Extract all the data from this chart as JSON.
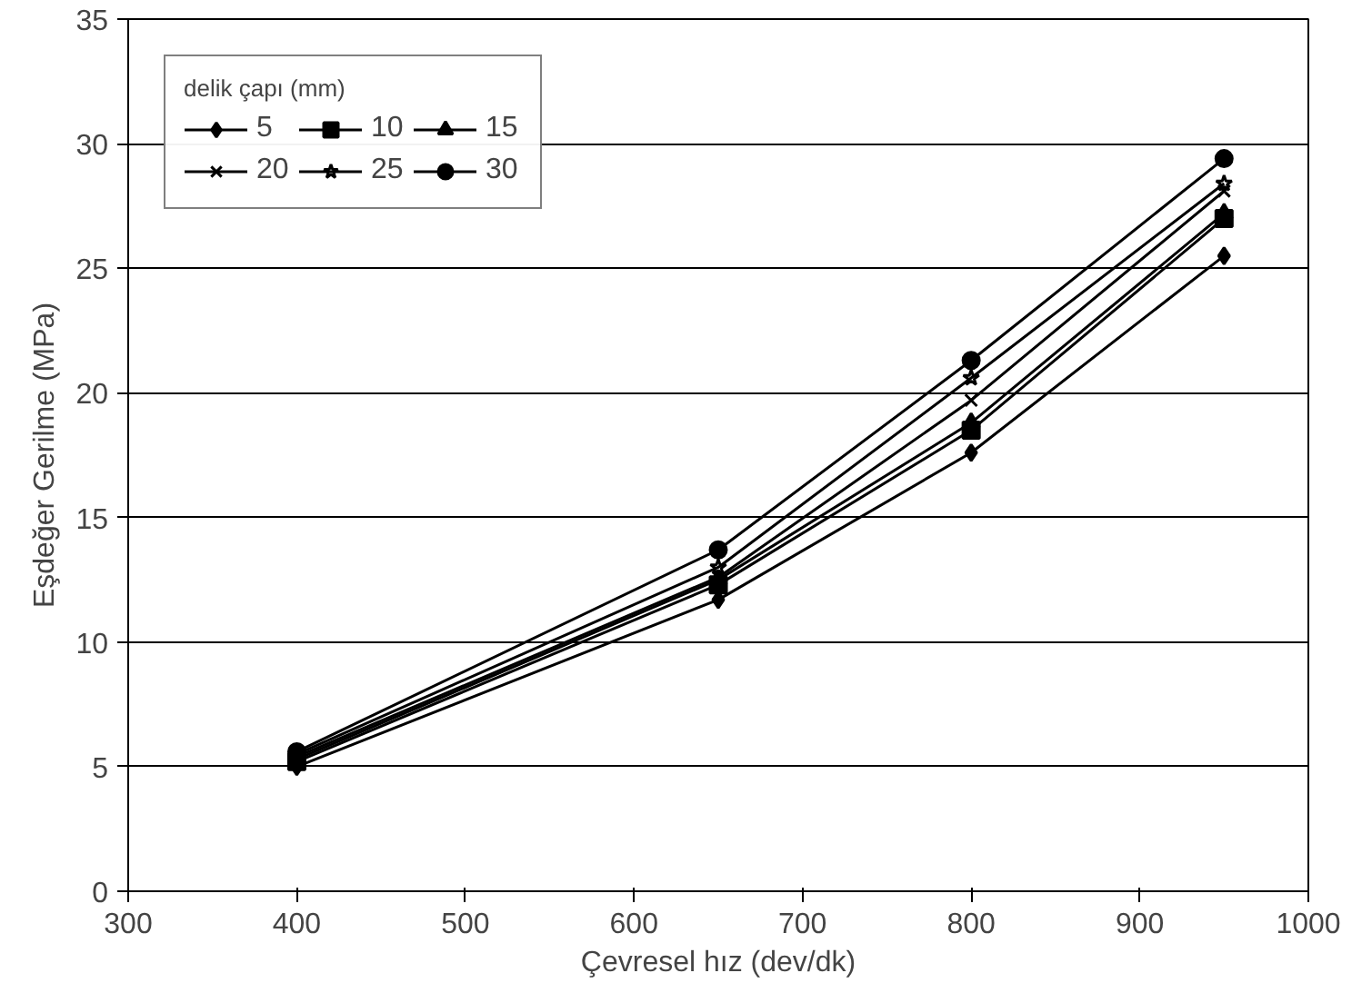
{
  "chart_data": {
    "type": "line",
    "xlabel": "Çevresel hız (dev/dk)",
    "ylabel": "Eşdeğer Gerilme (MPa)",
    "legend_title": "delik çapı (mm)",
    "x": [
      400,
      650,
      800,
      950
    ],
    "series": [
      {
        "name": "5",
        "color": "#000000",
        "marker": "diamond",
        "values": [
          5.0,
          11.7,
          17.6,
          25.5
        ]
      },
      {
        "name": "10",
        "color": "#000000",
        "marker": "square",
        "values": [
          5.2,
          12.3,
          18.5,
          27.0
        ]
      },
      {
        "name": "15",
        "color": "#000000",
        "marker": "triangle",
        "values": [
          5.3,
          12.5,
          18.8,
          27.2
        ]
      },
      {
        "name": "20",
        "color": "#000000",
        "marker": "cross",
        "values": [
          5.4,
          12.6,
          19.7,
          28.1
        ]
      },
      {
        "name": "25",
        "color": "#000000",
        "marker": "star",
        "values": [
          5.5,
          13.0,
          20.6,
          28.4
        ]
      },
      {
        "name": "30",
        "color": "#000000",
        "marker": "circle",
        "values": [
          5.6,
          13.7,
          21.3,
          29.4
        ]
      }
    ],
    "xlim": [
      300,
      1000
    ],
    "xticks": [
      300,
      400,
      500,
      600,
      700,
      800,
      900,
      1000
    ],
    "ylim": [
      0,
      35
    ],
    "yticks": [
      0,
      5,
      10,
      15,
      20,
      25,
      30,
      35
    ],
    "grid": "y",
    "legend": "top left",
    "line_style": "solid"
  }
}
